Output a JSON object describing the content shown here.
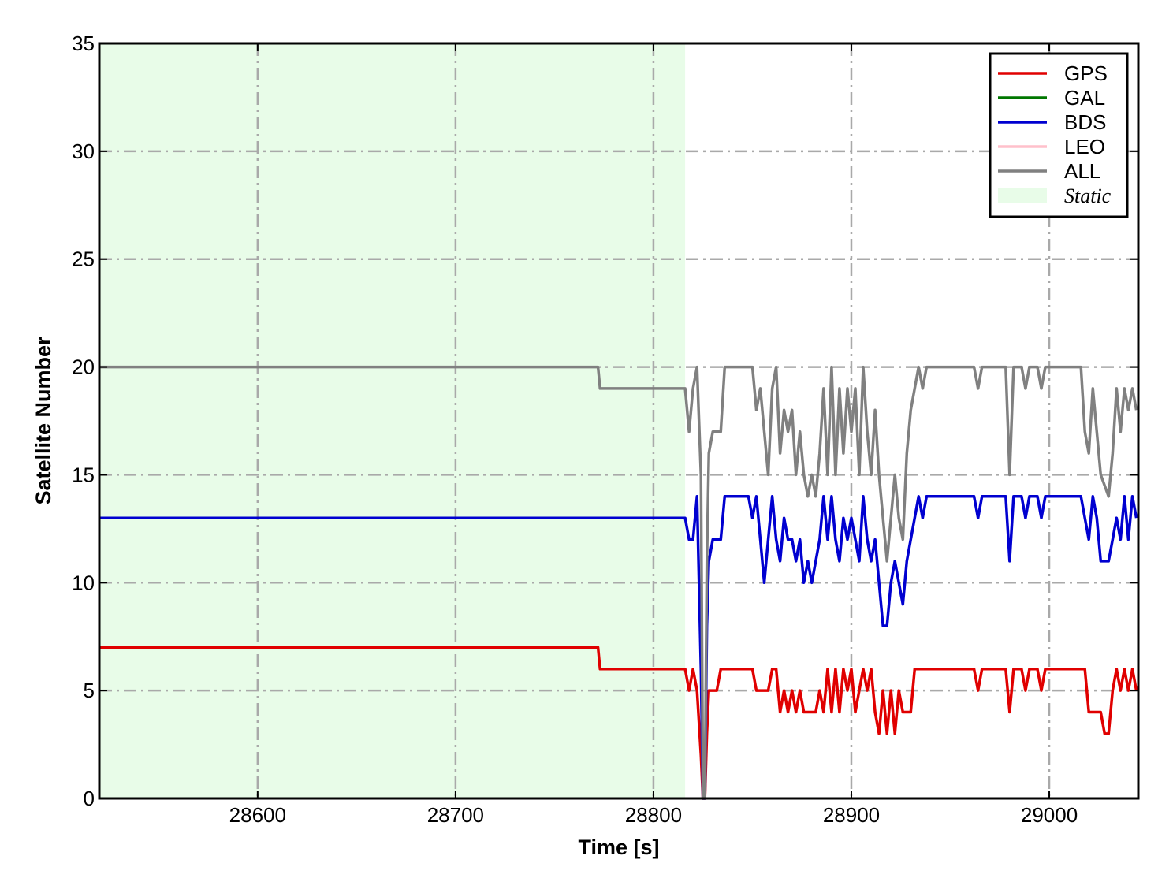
{
  "chart_data": {
    "type": "line",
    "title": "",
    "xlabel": "Time [s]",
    "ylabel": "Satellite Number",
    "xlim": [
      28520,
      29045
    ],
    "ylim": [
      0,
      35
    ],
    "xticks": [
      28600,
      28700,
      28800,
      28900,
      29000
    ],
    "xtick_labels": [
      "28600",
      "28700",
      "28800",
      "28900",
      "29000"
    ],
    "yticks": [
      0,
      5,
      10,
      15,
      20,
      25,
      30,
      35
    ],
    "ytick_labels": [
      "0",
      "5",
      "10",
      "15",
      "20",
      "25",
      "30",
      "35"
    ],
    "grid": true,
    "legend_position": "top-right",
    "shaded_region": {
      "name": "Static",
      "x_start": 28520,
      "x_end": 28816,
      "color": "#e8fce8"
    },
    "series": [
      {
        "name": "GPS",
        "color": "#e00000",
        "points": [
          [
            28520,
            7
          ],
          [
            28772,
            7
          ],
          [
            28773,
            6
          ],
          [
            28816,
            6
          ],
          [
            28818,
            5
          ],
          [
            28820,
            6
          ],
          [
            28822,
            5
          ],
          [
            28824,
            2
          ],
          [
            28825,
            0
          ],
          [
            28826,
            0
          ],
          [
            28827,
            3
          ],
          [
            28828,
            5
          ],
          [
            28832,
            5
          ],
          [
            28834,
            6
          ],
          [
            28850,
            6
          ],
          [
            28852,
            5
          ],
          [
            28858,
            5
          ],
          [
            28860,
            6
          ],
          [
            28862,
            6
          ],
          [
            28864,
            4
          ],
          [
            28866,
            5
          ],
          [
            28868,
            4
          ],
          [
            28870,
            5
          ],
          [
            28872,
            4
          ],
          [
            28874,
            5
          ],
          [
            28876,
            4
          ],
          [
            28882,
            4
          ],
          [
            28884,
            5
          ],
          [
            28886,
            4
          ],
          [
            28888,
            6
          ],
          [
            28890,
            4
          ],
          [
            28892,
            6
          ],
          [
            28894,
            4
          ],
          [
            28896,
            6
          ],
          [
            28898,
            5
          ],
          [
            28900,
            6
          ],
          [
            28902,
            4
          ],
          [
            28904,
            5
          ],
          [
            28906,
            6
          ],
          [
            28908,
            5
          ],
          [
            28910,
            6
          ],
          [
            28912,
            4
          ],
          [
            28914,
            3
          ],
          [
            28916,
            5
          ],
          [
            28918,
            3
          ],
          [
            28920,
            5
          ],
          [
            28922,
            3
          ],
          [
            28924,
            5
          ],
          [
            28926,
            4
          ],
          [
            28930,
            4
          ],
          [
            28932,
            6
          ],
          [
            28962,
            6
          ],
          [
            28964,
            5
          ],
          [
            28966,
            6
          ],
          [
            28978,
            6
          ],
          [
            28980,
            4
          ],
          [
            28982,
            6
          ],
          [
            28986,
            6
          ],
          [
            28988,
            5
          ],
          [
            28990,
            6
          ],
          [
            28994,
            6
          ],
          [
            28996,
            5
          ],
          [
            28998,
            6
          ],
          [
            29018,
            6
          ],
          [
            29020,
            4
          ],
          [
            29026,
            4
          ],
          [
            29028,
            3
          ],
          [
            29030,
            3
          ],
          [
            29032,
            5
          ],
          [
            29034,
            6
          ],
          [
            29036,
            5
          ],
          [
            29038,
            6
          ],
          [
            29040,
            5
          ],
          [
            29042,
            6
          ],
          [
            29044,
            5
          ]
        ]
      },
      {
        "name": "GAL",
        "color": "#007700",
        "points": []
      },
      {
        "name": "BDS",
        "color": "#0000d0",
        "points": [
          [
            28520,
            13
          ],
          [
            28816,
            13
          ],
          [
            28818,
            12
          ],
          [
            28820,
            12
          ],
          [
            28822,
            14
          ],
          [
            28824,
            6
          ],
          [
            28825,
            0
          ],
          [
            28826,
            0
          ],
          [
            28827,
            8
          ],
          [
            28828,
            11
          ],
          [
            28830,
            12
          ],
          [
            28834,
            12
          ],
          [
            28836,
            14
          ],
          [
            28848,
            14
          ],
          [
            28850,
            13
          ],
          [
            28852,
            14
          ],
          [
            28854,
            12
          ],
          [
            28856,
            10
          ],
          [
            28858,
            12
          ],
          [
            28860,
            14
          ],
          [
            28862,
            12
          ],
          [
            28864,
            11
          ],
          [
            28866,
            13
          ],
          [
            28868,
            12
          ],
          [
            28870,
            12
          ],
          [
            28872,
            11
          ],
          [
            28874,
            12
          ],
          [
            28876,
            10
          ],
          [
            28878,
            11
          ],
          [
            28880,
            10
          ],
          [
            28882,
            11
          ],
          [
            28884,
            12
          ],
          [
            28886,
            14
          ],
          [
            28888,
            12
          ],
          [
            28890,
            14
          ],
          [
            28892,
            12
          ],
          [
            28894,
            11
          ],
          [
            28896,
            13
          ],
          [
            28898,
            12
          ],
          [
            28900,
            13
          ],
          [
            28902,
            12
          ],
          [
            28904,
            11
          ],
          [
            28906,
            14
          ],
          [
            28908,
            12
          ],
          [
            28910,
            11
          ],
          [
            28912,
            12
          ],
          [
            28914,
            10
          ],
          [
            28916,
            8
          ],
          [
            28918,
            8
          ],
          [
            28920,
            10
          ],
          [
            28922,
            11
          ],
          [
            28924,
            10
          ],
          [
            28926,
            9
          ],
          [
            28928,
            11
          ],
          [
            28930,
            12
          ],
          [
            28932,
            13
          ],
          [
            28934,
            14
          ],
          [
            28936,
            13
          ],
          [
            28938,
            14
          ],
          [
            28962,
            14
          ],
          [
            28964,
            13
          ],
          [
            28966,
            14
          ],
          [
            28978,
            14
          ],
          [
            28980,
            11
          ],
          [
            28982,
            14
          ],
          [
            28986,
            14
          ],
          [
            28988,
            13
          ],
          [
            28990,
            14
          ],
          [
            28994,
            14
          ],
          [
            28996,
            13
          ],
          [
            28998,
            14
          ],
          [
            29016,
            14
          ],
          [
            29018,
            13
          ],
          [
            29020,
            12
          ],
          [
            29022,
            14
          ],
          [
            29024,
            13
          ],
          [
            29026,
            11
          ],
          [
            29030,
            11
          ],
          [
            29032,
            12
          ],
          [
            29034,
            13
          ],
          [
            29036,
            12
          ],
          [
            29038,
            14
          ],
          [
            29040,
            12
          ],
          [
            29042,
            14
          ],
          [
            29044,
            13
          ]
        ]
      },
      {
        "name": "LEO",
        "color": "#ffc0cb",
        "points": []
      },
      {
        "name": "ALL",
        "color": "#808080",
        "points": [
          [
            28520,
            20
          ],
          [
            28772,
            20
          ],
          [
            28773,
            19
          ],
          [
            28816,
            19
          ],
          [
            28818,
            17
          ],
          [
            28820,
            19
          ],
          [
            28822,
            20
          ],
          [
            28824,
            15
          ],
          [
            28825,
            0
          ],
          [
            28826,
            0
          ],
          [
            28827,
            11
          ],
          [
            28828,
            16
          ],
          [
            28830,
            17
          ],
          [
            28834,
            17
          ],
          [
            28836,
            20
          ],
          [
            28850,
            20
          ],
          [
            28852,
            18
          ],
          [
            28854,
            19
          ],
          [
            28856,
            17
          ],
          [
            28858,
            15
          ],
          [
            28860,
            19
          ],
          [
            28862,
            20
          ],
          [
            28864,
            16
          ],
          [
            28866,
            18
          ],
          [
            28868,
            17
          ],
          [
            28870,
            18
          ],
          [
            28872,
            15
          ],
          [
            28874,
            17
          ],
          [
            28876,
            15
          ],
          [
            28878,
            14
          ],
          [
            28880,
            15
          ],
          [
            28882,
            14
          ],
          [
            28884,
            16
          ],
          [
            28886,
            19
          ],
          [
            28888,
            15
          ],
          [
            28890,
            20
          ],
          [
            28892,
            15
          ],
          [
            28894,
            19
          ],
          [
            28896,
            16
          ],
          [
            28898,
            19
          ],
          [
            28900,
            17
          ],
          [
            28902,
            19
          ],
          [
            28904,
            15
          ],
          [
            28906,
            20
          ],
          [
            28908,
            17
          ],
          [
            28910,
            15
          ],
          [
            28912,
            18
          ],
          [
            28914,
            15
          ],
          [
            28916,
            13
          ],
          [
            28918,
            11
          ],
          [
            28920,
            13
          ],
          [
            28922,
            15
          ],
          [
            28924,
            13
          ],
          [
            28926,
            12
          ],
          [
            28928,
            16
          ],
          [
            28930,
            18
          ],
          [
            28932,
            19
          ],
          [
            28934,
            20
          ],
          [
            28936,
            19
          ],
          [
            28938,
            20
          ],
          [
            28962,
            20
          ],
          [
            28964,
            19
          ],
          [
            28966,
            20
          ],
          [
            28978,
            20
          ],
          [
            28980,
            15
          ],
          [
            28982,
            20
          ],
          [
            28986,
            20
          ],
          [
            28988,
            19
          ],
          [
            28990,
            20
          ],
          [
            28994,
            20
          ],
          [
            28996,
            19
          ],
          [
            28998,
            20
          ],
          [
            29016,
            20
          ],
          [
            29018,
            17
          ],
          [
            29020,
            16
          ],
          [
            29022,
            19
          ],
          [
            29024,
            17
          ],
          [
            29026,
            15
          ],
          [
            29030,
            14
          ],
          [
            29032,
            16
          ],
          [
            29034,
            19
          ],
          [
            29036,
            17
          ],
          [
            29038,
            19
          ],
          [
            29040,
            18
          ],
          [
            29042,
            19
          ],
          [
            29044,
            18
          ]
        ]
      }
    ]
  }
}
